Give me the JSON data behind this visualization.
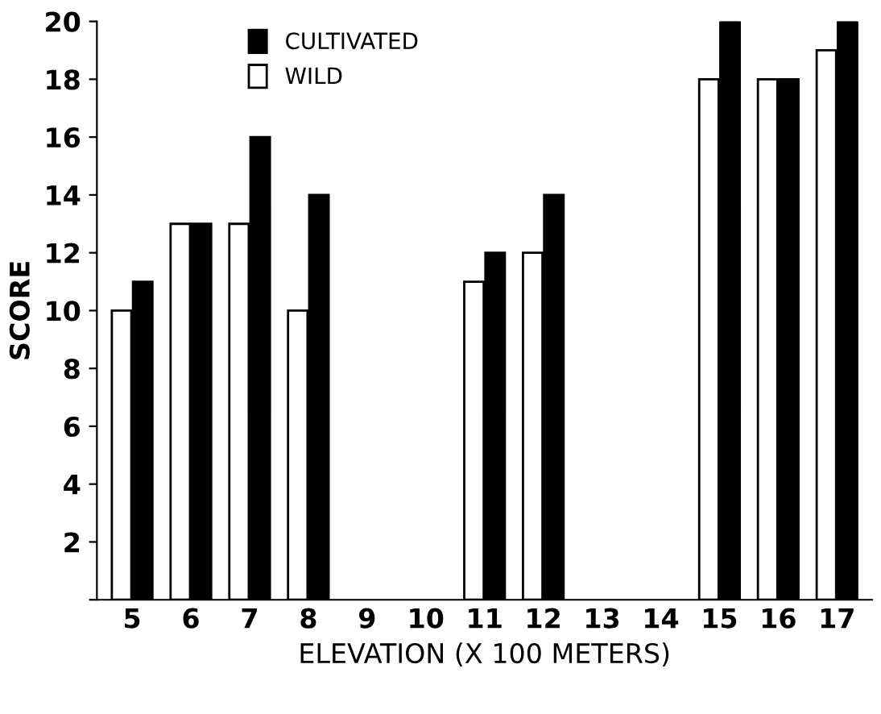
{
  "chart_data": {
    "type": "bar",
    "xlabel": "ELEVATION (X 100 METERS)",
    "ylabel": "SCORE",
    "categories": [
      "5",
      "6",
      "7",
      "8",
      "9",
      "10",
      "11",
      "12",
      "13",
      "14",
      "15",
      "16",
      "17"
    ],
    "series": [
      {
        "name": "WILD",
        "color": "#ffffff",
        "values": [
          10,
          13,
          13,
          10,
          null,
          null,
          11,
          12,
          null,
          null,
          18,
          18,
          19
        ]
      },
      {
        "name": "CULTIVATED",
        "color": "#000000",
        "values": [
          11,
          13,
          16,
          14,
          null,
          null,
          12,
          14,
          null,
          null,
          20,
          18,
          20
        ]
      }
    ],
    "ylim": [
      0,
      20
    ],
    "yticks": [
      {
        "value": 0,
        "label": null
      },
      2,
      4,
      6,
      8,
      10,
      12,
      14,
      16,
      18,
      20
    ],
    "grid": false,
    "legend": "top"
  }
}
